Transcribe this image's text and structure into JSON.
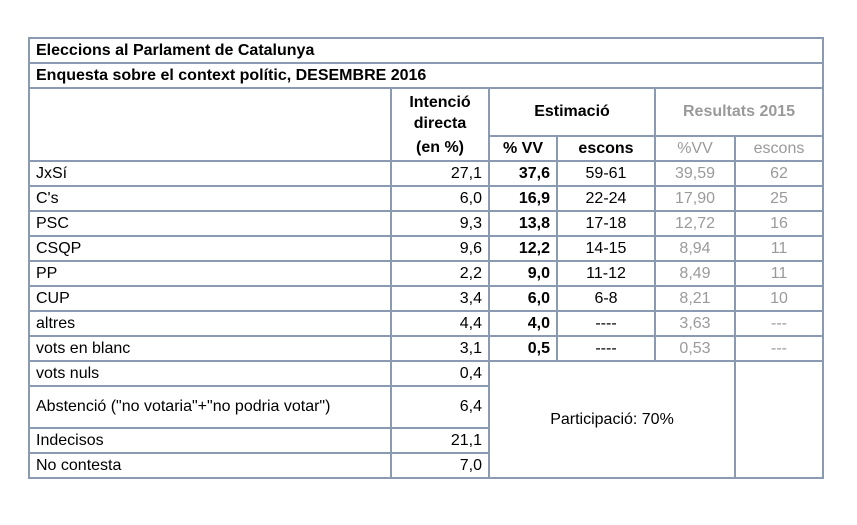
{
  "table": {
    "title": "Eleccions al Parlament de Catalunya",
    "subtitle": "Enquesta sobre el context polític, DESEMBRE 2016",
    "header": {
      "intencio_line1": "Intenció",
      "intencio_line2": "directa",
      "intencio_unit": "(en %)",
      "estimacio": "Estimació",
      "resultats": "Resultats 2015",
      "vv": "% VV",
      "escons": "escons",
      "vv2015": "%VV",
      "escons2015": "escons"
    },
    "rows": [
      {
        "name": "JxSí",
        "intencio": "27,1",
        "vv": "37,6",
        "escons": "59-61",
        "vv2015": "39,59",
        "escons2015": "62"
      },
      {
        "name": "C's",
        "intencio": "6,0",
        "vv": "16,9",
        "escons": "22-24",
        "vv2015": "17,90",
        "escons2015": "25"
      },
      {
        "name": "PSC",
        "intencio": "9,3",
        "vv": "13,8",
        "escons": "17-18",
        "vv2015": "12,72",
        "escons2015": "16"
      },
      {
        "name": "CSQP",
        "intencio": "9,6",
        "vv": "12,2",
        "escons": "14-15",
        "vv2015": "8,94",
        "escons2015": "11"
      },
      {
        "name": "PP",
        "intencio": "2,2",
        "vv": "9,0",
        "escons": "11-12",
        "vv2015": "8,49",
        "escons2015": "11"
      },
      {
        "name": "CUP",
        "intencio": "3,4",
        "vv": "6,0",
        "escons": "6-8",
        "vv2015": "8,21",
        "escons2015": "10"
      },
      {
        "name": "altres",
        "intencio": "4,4",
        "vv": "4,0",
        "escons": "----",
        "vv2015": "3,63",
        "escons2015": "---"
      },
      {
        "name": "vots en blanc",
        "intencio": "3,1",
        "vv": "0,5",
        "escons": "----",
        "vv2015": "0,53",
        "escons2015": "---"
      }
    ],
    "extra_rows": [
      {
        "name": "vots nuls",
        "intencio": "0,4"
      },
      {
        "name": "Abstenció (\"no votaria\"+\"no podria votar\")",
        "intencio": "6,4"
      },
      {
        "name": "Indecisos",
        "intencio": "21,1"
      },
      {
        "name": "No contesta",
        "intencio": "7,0"
      }
    ],
    "participacio": "Participació: 70%"
  }
}
